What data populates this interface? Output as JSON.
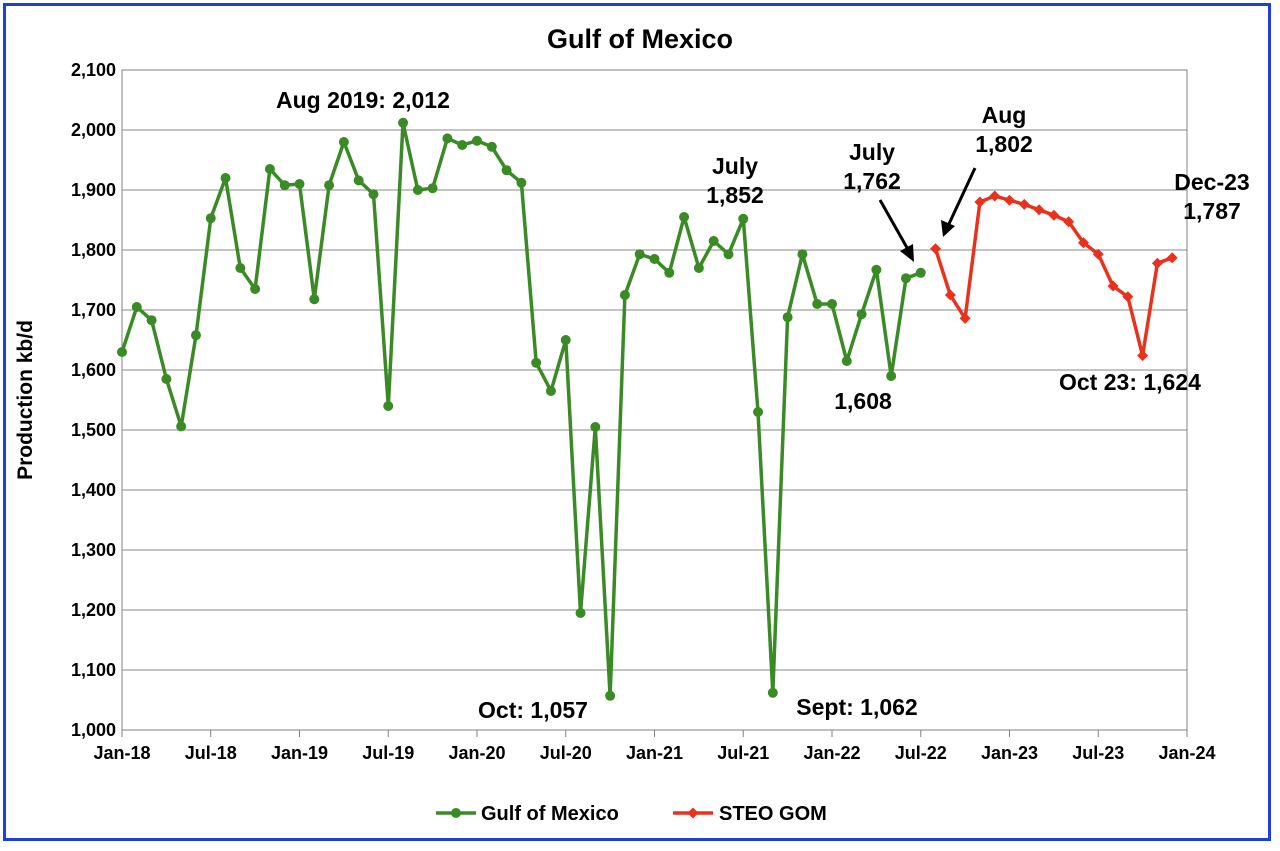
{
  "chart_data": {
    "type": "line",
    "title": "Gulf of Mexico",
    "ylabel": "Production kb/d",
    "xlabel": "",
    "ylim": [
      1000,
      2100
    ],
    "yticks": [
      1000,
      1100,
      1200,
      1300,
      1400,
      1500,
      1600,
      1700,
      1800,
      1900,
      2000,
      2100
    ],
    "ytick_labels": [
      "1,000",
      "1,100",
      "1,200",
      "1,300",
      "1,400",
      "1,500",
      "1,600",
      "1,700",
      "1,800",
      "1,900",
      "2,000",
      "2,100"
    ],
    "x_range": [
      "2018-01",
      "2024-01"
    ],
    "xticks": [
      "2018-01",
      "2018-07",
      "2019-01",
      "2019-07",
      "2020-01",
      "2020-07",
      "2021-01",
      "2021-07",
      "2022-01",
      "2022-07",
      "2023-01",
      "2023-07",
      "2024-01"
    ],
    "xtick_labels": [
      "Jan-18",
      "Jul-18",
      "Jan-19",
      "Jul-19",
      "Jan-20",
      "Jul-20",
      "Jan-21",
      "Jul-21",
      "Jan-22",
      "Jul-22",
      "Jan-23",
      "Jul-23",
      "Jan-24"
    ],
    "grid": true,
    "legend": "bottom",
    "series": [
      {
        "name": "Gulf of Mexico",
        "color": "#3a8a26",
        "marker": "circle",
        "start": "2018-01",
        "values": [
          1630,
          1705,
          1683,
          1585,
          1506,
          1658,
          1853,
          1920,
          1770,
          1735,
          1935,
          1908,
          1910,
          1718,
          1908,
          1980,
          1916,
          1893,
          1540,
          2012,
          1900,
          1903,
          1986,
          1975,
          1982,
          1972,
          1933,
          1912,
          1612,
          1565,
          1650,
          1195,
          1505,
          1057,
          1725,
          1793,
          1785,
          1762,
          1855,
          1770,
          1815,
          1793,
          1852,
          1530,
          1062,
          1688,
          1793,
          1710,
          1710,
          1615,
          1693,
          1767,
          1590,
          1753,
          1762
        ]
      },
      {
        "name": "STEO GOM",
        "color": "#e8321e",
        "marker": "diamond",
        "start": "2022-08",
        "values": [
          1802,
          1725,
          1686,
          1880,
          1890,
          1883,
          1876,
          1867,
          1858,
          1847,
          1812,
          1793,
          1740,
          1722,
          1624,
          1778,
          1787
        ]
      }
    ],
    "annotations": [
      {
        "lines": [
          "Aug 2019: 2,012"
        ]
      },
      {
        "lines": [
          "July",
          "1,852"
        ]
      },
      {
        "lines": [
          "July",
          "1,762"
        ]
      },
      {
        "lines": [
          "Aug",
          "1,802"
        ]
      },
      {
        "lines": [
          "Dec-23",
          "1,787"
        ]
      },
      {
        "lines": [
          "1,608"
        ]
      },
      {
        "lines": [
          "Oct 23: 1,624"
        ]
      },
      {
        "lines": [
          "Oct: 1,057"
        ]
      },
      {
        "lines": [
          "Sept: 1,062"
        ]
      }
    ]
  }
}
